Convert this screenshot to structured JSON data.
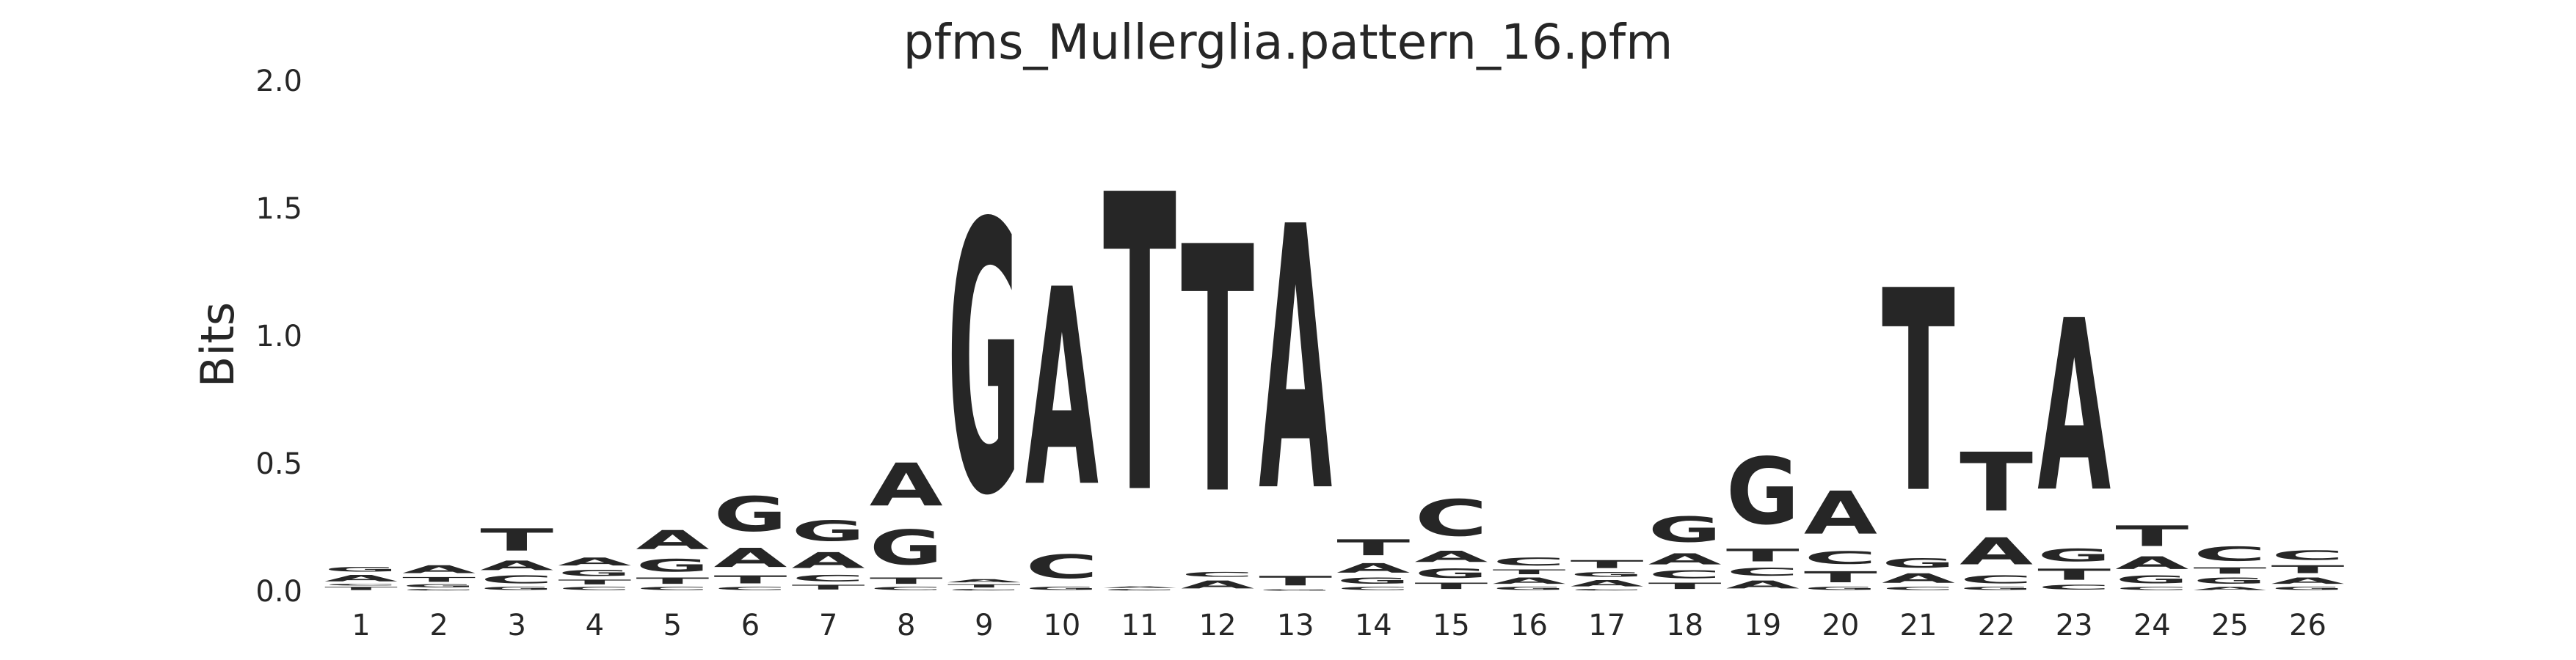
{
  "chart_data": {
    "type": "sequence-logo",
    "title": "pfms_Mullerglia.pattern_16.pfm",
    "ylabel": "Bits",
    "xlabel": "",
    "ylim": [
      0,
      2.0
    ],
    "y_ticks": [
      "0.0",
      "0.5",
      "1.0",
      "1.5",
      "2.0"
    ],
    "y_tick_values": [
      0,
      0.5,
      1.0,
      1.5,
      2.0
    ],
    "x_ticks": [
      "1",
      "2",
      "3",
      "4",
      "5",
      "6",
      "7",
      "8",
      "9",
      "10",
      "11",
      "12",
      "13",
      "14",
      "15",
      "16",
      "17",
      "18",
      "19",
      "20",
      "21",
      "22",
      "23",
      "24",
      "25",
      "26"
    ],
    "grid": false,
    "letter_colors": {
      "A": "#008000",
      "C": "#0000ee",
      "G": "#ffa500",
      "T": "#ff0000"
    },
    "positions": [
      [
        [
          "T",
          0.02
        ],
        [
          "C",
          0.01
        ],
        [
          "A",
          0.04
        ],
        [
          "G",
          0.03
        ]
      ],
      [
        [
          "C",
          0.01
        ],
        [
          "G",
          0.02
        ],
        [
          "T",
          0.03
        ],
        [
          "A",
          0.05
        ]
      ],
      [
        [
          "G",
          0.02
        ],
        [
          "C",
          0.05
        ],
        [
          "A",
          0.06
        ],
        [
          "T",
          0.14
        ]
      ],
      [
        [
          "C",
          0.02
        ],
        [
          "T",
          0.03
        ],
        [
          "G",
          0.04
        ],
        [
          "A",
          0.05
        ]
      ],
      [
        [
          "C",
          0.02
        ],
        [
          "T",
          0.04
        ],
        [
          "G",
          0.08
        ],
        [
          "A",
          0.12
        ]
      ],
      [
        [
          "C",
          0.02
        ],
        [
          "T",
          0.05
        ],
        [
          "A",
          0.12
        ],
        [
          "G",
          0.22
        ]
      ],
      [
        [
          "T",
          0.03
        ],
        [
          "C",
          0.04
        ],
        [
          "A",
          0.1
        ],
        [
          "G",
          0.13
        ]
      ],
      [
        [
          "C",
          0.02
        ],
        [
          "T",
          0.04
        ],
        [
          "G",
          0.22
        ],
        [
          "A",
          0.27
        ]
      ],
      [
        [
          "C",
          0.01
        ],
        [
          "T",
          0.02
        ],
        [
          "A",
          0.02
        ],
        [
          "G",
          1.7
        ]
      ],
      [
        [
          "G",
          0.02
        ],
        [
          "C",
          0.15
        ],
        [
          "A",
          1.24
        ]
      ],
      [
        [
          "C",
          0.01
        ],
        [
          "A",
          0.01
        ],
        [
          "T",
          1.87
        ]
      ],
      [
        [
          "A",
          0.05
        ],
        [
          "C",
          0.03
        ],
        [
          "T",
          1.55
        ]
      ],
      [
        [
          "G",
          0.01
        ],
        [
          "T",
          0.06
        ],
        [
          "A",
          1.66
        ]
      ],
      [
        [
          "C",
          0.02
        ],
        [
          "G",
          0.04
        ],
        [
          "A",
          0.06
        ],
        [
          "T",
          0.1
        ]
      ],
      [
        [
          "T",
          0.04
        ],
        [
          "G",
          0.06
        ],
        [
          "A",
          0.07
        ],
        [
          "C",
          0.23
        ]
      ],
      [
        [
          "G",
          0.02
        ],
        [
          "A",
          0.04
        ],
        [
          "T",
          0.03
        ],
        [
          "C",
          0.05
        ]
      ],
      [
        [
          "C",
          0.01
        ],
        [
          "A",
          0.04
        ],
        [
          "G",
          0.03
        ],
        [
          "T",
          0.05
        ]
      ],
      [
        [
          "T",
          0.04
        ],
        [
          "C",
          0.05
        ],
        [
          "A",
          0.07
        ],
        [
          "G",
          0.16
        ]
      ],
      [
        [
          "A",
          0.05
        ],
        [
          "C",
          0.05
        ],
        [
          "T",
          0.08
        ],
        [
          "G",
          0.42
        ]
      ],
      [
        [
          "G",
          0.02
        ],
        [
          "T",
          0.07
        ],
        [
          "C",
          0.08
        ],
        [
          "A",
          0.27
        ]
      ],
      [
        [
          "C",
          0.02
        ],
        [
          "A",
          0.06
        ],
        [
          "G",
          0.06
        ],
        [
          "T",
          1.27
        ]
      ],
      [
        [
          "G",
          0.02
        ],
        [
          "C",
          0.05
        ],
        [
          "A",
          0.17
        ],
        [
          "T",
          0.37
        ]
      ],
      [
        [
          "C",
          0.03
        ],
        [
          "T",
          0.07
        ],
        [
          "G",
          0.08
        ],
        [
          "A",
          1.08
        ]
      ],
      [
        [
          "C",
          0.02
        ],
        [
          "G",
          0.05
        ],
        [
          "A",
          0.08
        ],
        [
          "T",
          0.13
        ]
      ],
      [
        [
          "A",
          0.02
        ],
        [
          "G",
          0.04
        ],
        [
          "T",
          0.04
        ],
        [
          "C",
          0.09
        ]
      ],
      [
        [
          "G",
          0.02
        ],
        [
          "A",
          0.04
        ],
        [
          "T",
          0.05
        ],
        [
          "C",
          0.06
        ]
      ]
    ]
  }
}
